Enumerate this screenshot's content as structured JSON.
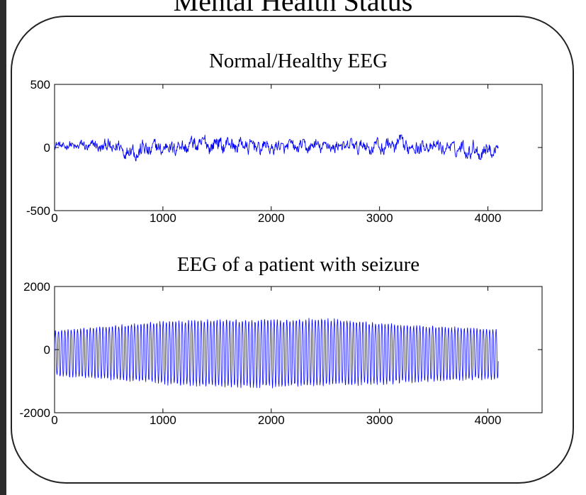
{
  "page_title": "Mental Health Status",
  "chart_data": [
    {
      "type": "line",
      "title": "Normal/Healthy EEG",
      "xlabel": "",
      "ylabel": "",
      "xlim": [
        0,
        4500
      ],
      "ylim": [
        -500,
        500
      ],
      "xticks": [
        0,
        1000,
        2000,
        3000,
        4000
      ],
      "yticks": [
        -500,
        0,
        500
      ],
      "grid": false,
      "color": "#0000ff",
      "n_samples": 4097,
      "summary": {
        "min": -120,
        "max": 115,
        "typical_amplitude": 40
      },
      "envelope": [
        {
          "x": 0,
          "min": -20,
          "max": 50
        },
        {
          "x": 500,
          "min": -60,
          "max": 70
        },
        {
          "x": 800,
          "min": -115,
          "max": 60
        },
        {
          "x": 1000,
          "min": -70,
          "max": 70
        },
        {
          "x": 1500,
          "min": -50,
          "max": 110
        },
        {
          "x": 2000,
          "min": -60,
          "max": 60
        },
        {
          "x": 2500,
          "min": -50,
          "max": 70
        },
        {
          "x": 3000,
          "min": -60,
          "max": 80
        },
        {
          "x": 3200,
          "min": -70,
          "max": 100
        },
        {
          "x": 3500,
          "min": -50,
          "max": 60
        },
        {
          "x": 4000,
          "min": -110,
          "max": 60
        },
        {
          "x": 4097,
          "min": -30,
          "max": 40
        }
      ]
    },
    {
      "type": "line",
      "title": "EEG of a patient with seizure",
      "xlabel": "",
      "ylabel": "",
      "xlim": [
        0,
        4500
      ],
      "ylim": [
        -2000,
        2000
      ],
      "xticks": [
        0,
        1000,
        2000,
        3000,
        4000
      ],
      "yticks": [
        -2000,
        0,
        2000
      ],
      "grid": false,
      "color": "#0000ff",
      "n_samples": 4097,
      "oscillation_cycles": 140,
      "envelope": [
        {
          "x": 0,
          "min": -850,
          "max": 600
        },
        {
          "x": 500,
          "min": -950,
          "max": 750
        },
        {
          "x": 1000,
          "min": -1100,
          "max": 900
        },
        {
          "x": 1500,
          "min": -1200,
          "max": 950
        },
        {
          "x": 2000,
          "min": -1200,
          "max": 950
        },
        {
          "x": 2500,
          "min": -1150,
          "max": 1000
        },
        {
          "x": 3000,
          "min": -1100,
          "max": 850
        },
        {
          "x": 3500,
          "min": -1000,
          "max": 750
        },
        {
          "x": 4097,
          "min": -950,
          "max": 650
        }
      ]
    }
  ]
}
